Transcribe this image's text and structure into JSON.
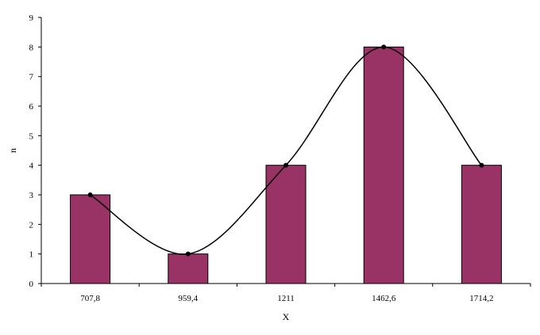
{
  "chart_data": {
    "type": "bar",
    "title": "",
    "xlabel": "X",
    "ylabel": "n",
    "categories": [
      "707,8",
      "959,4",
      "1211",
      "1462,6",
      "1714,2"
    ],
    "series": [
      {
        "values": [
          3,
          1,
          4,
          8,
          4
        ]
      }
    ],
    "overlay": {
      "type": "smoothed-line",
      "values": [
        3,
        1,
        4,
        8,
        4
      ],
      "markers": true
    },
    "ylim": [
      0,
      9
    ],
    "yticks": [
      "0",
      "1",
      "2",
      "3",
      "4",
      "5",
      "6",
      "7",
      "8",
      "9"
    ],
    "grid": false,
    "legend": "none",
    "colors": {
      "bar": "#993366",
      "bar_edge": "#000000",
      "line": "#000000",
      "axis": "#000000"
    }
  }
}
